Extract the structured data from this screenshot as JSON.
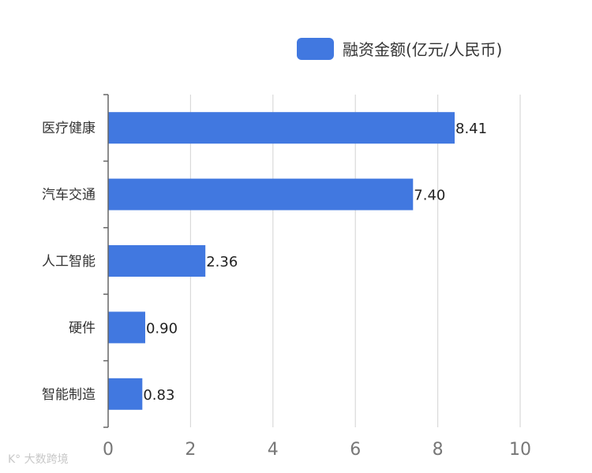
{
  "chart_data": {
    "type": "bar",
    "orientation": "horizontal",
    "categories": [
      "医疗健康",
      "汽车交通",
      "人工智能",
      "硬件",
      "智能制造"
    ],
    "series": [
      {
        "name": "融资金额(亿元/人民币)",
        "values": [
          8.41,
          7.4,
          2.36,
          0.9,
          0.83
        ],
        "color": "#4178e0"
      }
    ],
    "value_labels": [
      "8.41",
      "7.40",
      "2.36",
      "0.90",
      "0.83"
    ],
    "xlim": [
      0,
      10
    ],
    "xticks": [
      "0",
      "2",
      "4",
      "6",
      "8",
      "10"
    ],
    "grid": true,
    "legend_position": "top-right"
  },
  "watermark": "K° 大数跨境"
}
